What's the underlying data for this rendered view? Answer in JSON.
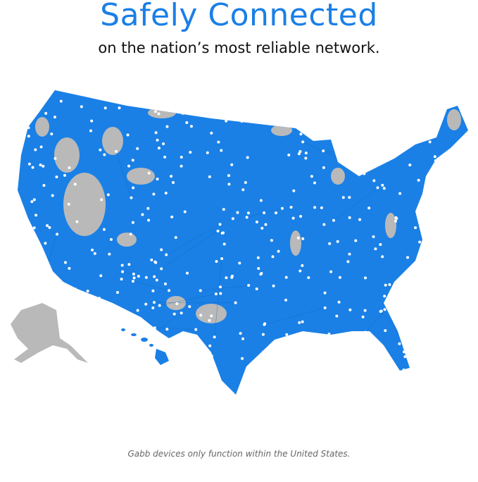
{
  "header": {
    "title": "Safely Connected",
    "subtitle": "on the nation’s most reliable network."
  },
  "map": {
    "region": "United States",
    "coverage_color": "#1a80e6",
    "no_coverage_color": "#b9b9b9",
    "tower_dot_color": "#ffffff"
  },
  "footer": {
    "disclaimer": "Gabb devices only function within the United States."
  }
}
